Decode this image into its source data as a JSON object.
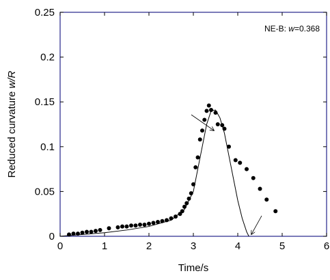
{
  "chart_data": {
    "type": "scatter",
    "xlabel": "Time/s",
    "ylabel": [
      "Reduced curvature ",
      "w/R"
    ],
    "annotation": [
      "NE-B: ",
      "w",
      "=0.368"
    ],
    "xlim": [
      0,
      6
    ],
    "xticks": [
      0,
      1,
      2,
      3,
      4,
      5,
      6
    ],
    "ylim": [
      0,
      0.25
    ],
    "yticks": [
      0,
      0.05,
      0.1,
      0.15,
      0.2,
      0.25
    ],
    "frame_color": "#23238a",
    "series": [
      {
        "type": "scatter",
        "color": "#000000",
        "x": [
          0.2,
          0.3,
          0.4,
          0.5,
          0.6,
          0.7,
          0.8,
          0.9,
          1.1,
          1.3,
          1.4,
          1.5,
          1.6,
          1.7,
          1.8,
          1.9,
          2.0,
          2.1,
          2.2,
          2.3,
          2.4,
          2.5,
          2.6,
          2.7,
          2.75,
          2.8,
          2.85,
          2.9,
          2.95,
          3.0,
          3.05,
          3.1,
          3.15,
          3.2,
          3.25,
          3.3,
          3.35,
          3.4,
          3.5,
          3.55,
          3.65,
          3.7,
          3.8,
          3.95,
          4.05,
          4.2,
          4.35,
          4.5,
          4.65,
          4.85
        ],
        "values": [
          0.002,
          0.003,
          0.003,
          0.004,
          0.005,
          0.005,
          0.006,
          0.007,
          0.009,
          0.01,
          0.011,
          0.011,
          0.012,
          0.012,
          0.013,
          0.013,
          0.014,
          0.015,
          0.016,
          0.017,
          0.018,
          0.02,
          0.022,
          0.025,
          0.028,
          0.033,
          0.037,
          0.042,
          0.048,
          0.058,
          0.077,
          0.088,
          0.108,
          0.118,
          0.13,
          0.14,
          0.146,
          0.141,
          0.138,
          0.125,
          0.124,
          0.12,
          0.1,
          0.085,
          0.082,
          0.075,
          0.065,
          0.053,
          0.041,
          0.028
        ]
      },
      {
        "type": "line",
        "color": "#000000",
        "x": [
          0,
          0.5,
          1,
          1.5,
          2,
          2.5,
          2.8,
          3.0,
          3.1,
          3.2,
          3.3,
          3.4,
          3.5,
          3.6,
          3.7,
          3.8,
          3.9,
          4.0,
          4.1,
          4.2,
          4.25
        ],
        "values": [
          0,
          0.002,
          0.004,
          0.007,
          0.011,
          0.018,
          0.03,
          0.05,
          0.075,
          0.1,
          0.125,
          0.14,
          0.141,
          0.132,
          0.115,
          0.09,
          0.065,
          0.04,
          0.02,
          0.005,
          0
        ]
      }
    ]
  }
}
